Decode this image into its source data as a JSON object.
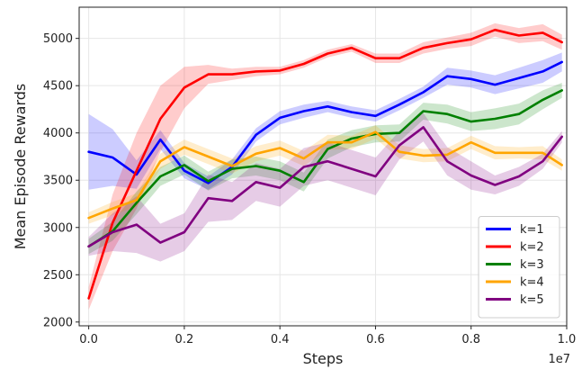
{
  "chart_data": {
    "type": "line",
    "title": "",
    "xlabel": "Steps",
    "ylabel": "Mean Episode Rewards",
    "x_multiplier_label": "1e7",
    "xlim": [
      -0.02,
      1.0
    ],
    "ylim": [
      1960,
      5330
    ],
    "x_ticks": [
      0.0,
      0.2,
      0.4,
      0.6,
      0.8,
      1.0
    ],
    "x_tick_labels": [
      "0.0",
      "0.2",
      "0.4",
      "0.6",
      "0.8",
      "1.0"
    ],
    "y_ticks": [
      2000,
      2500,
      3000,
      3500,
      4000,
      4500,
      5000
    ],
    "y_tick_labels": [
      "2000",
      "2500",
      "3000",
      "3500",
      "4000",
      "4500",
      "5000"
    ],
    "grid": true,
    "legend_position": "bottom-right",
    "x": [
      0.0,
      0.05,
      0.1,
      0.15,
      0.2,
      0.25,
      0.3,
      0.35,
      0.4,
      0.45,
      0.5,
      0.55,
      0.6,
      0.65,
      0.7,
      0.75,
      0.8,
      0.85,
      0.9,
      0.95,
      0.99
    ],
    "series": [
      {
        "name": "k=1",
        "color": "#0000ff",
        "values": [
          3800,
          3740,
          3560,
          3930,
          3600,
          3470,
          3640,
          3980,
          4160,
          4230,
          4280,
          4220,
          4180,
          4300,
          4430,
          4600,
          4570,
          4510,
          4580,
          4650,
          4750
        ],
        "band": [
          400,
          300,
          150,
          100,
          80,
          70,
          80,
          70,
          70,
          70,
          60,
          60,
          60,
          60,
          60,
          90,
          90,
          100,
          110,
          120,
          100
        ]
      },
      {
        "name": "k=2",
        "color": "#ff0000",
        "values": [
          2250,
          3050,
          3600,
          4150,
          4480,
          4620,
          4620,
          4650,
          4660,
          4730,
          4840,
          4900,
          4790,
          4790,
          4900,
          4950,
          4990,
          5090,
          5030,
          5060,
          4960
        ],
        "band": [
          120,
          300,
          400,
          350,
          220,
          100,
          60,
          50,
          40,
          40,
          40,
          40,
          50,
          50,
          60,
          60,
          70,
          70,
          80,
          90,
          80
        ]
      },
      {
        "name": "k=3",
        "color": "#008000",
        "values": [
          2800,
          2960,
          3260,
          3540,
          3660,
          3490,
          3620,
          3650,
          3600,
          3480,
          3830,
          3940,
          3990,
          4000,
          4230,
          4200,
          4120,
          4150,
          4200,
          4350,
          4450
        ],
        "band": [
          80,
          100,
          120,
          100,
          100,
          100,
          100,
          100,
          100,
          100,
          100,
          90,
          90,
          90,
          90,
          100,
          100,
          110,
          110,
          100,
          80
        ]
      },
      {
        "name": "k=4",
        "color": "#ffa500",
        "values": [
          3100,
          3200,
          3290,
          3700,
          3850,
          3750,
          3650,
          3780,
          3840,
          3730,
          3900,
          3900,
          4010,
          3800,
          3760,
          3770,
          3900,
          3790,
          3790,
          3790,
          3660
        ],
        "band": [
          60,
          70,
          70,
          80,
          80,
          80,
          80,
          80,
          80,
          80,
          80,
          70,
          70,
          70,
          70,
          70,
          70,
          70,
          60,
          70,
          60
        ]
      },
      {
        "name": "k=5",
        "color": "#800080",
        "values": [
          2800,
          2950,
          3030,
          2840,
          2950,
          3310,
          3280,
          3480,
          3420,
          3640,
          3700,
          3620,
          3540,
          3870,
          4060,
          3700,
          3550,
          3450,
          3540,
          3700,
          3960
        ],
        "band": [
          100,
          200,
          300,
          200,
          200,
          250,
          200,
          200,
          200,
          200,
          200,
          200,
          200,
          150,
          150,
          150,
          150,
          100,
          100,
          80,
          60
        ]
      }
    ]
  }
}
